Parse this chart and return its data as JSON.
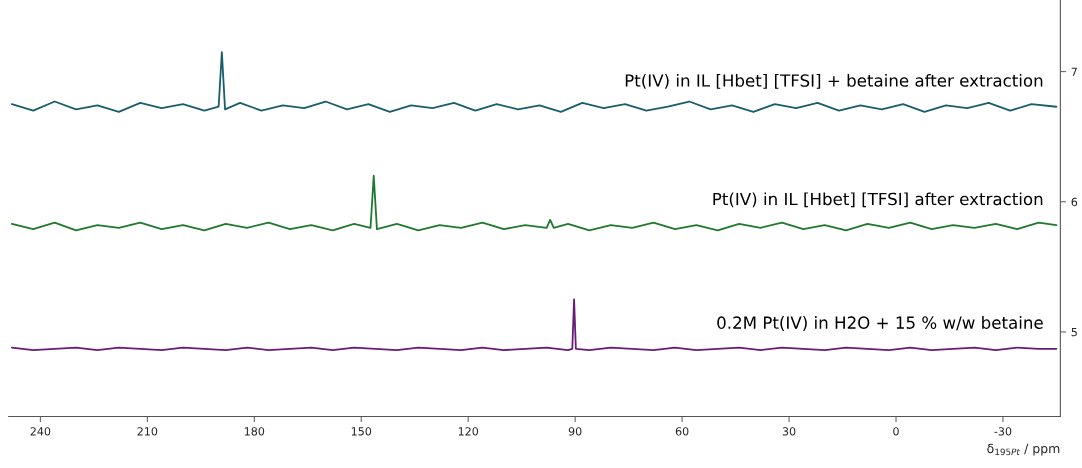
{
  "chart_data": {
    "type": "line",
    "xlabel": "δ$_{195Pt}$ / ppm",
    "xlim": [
      248.9,
      -46.1
    ],
    "xticks": [
      240,
      210,
      180,
      150,
      120,
      90,
      60,
      30,
      0,
      -30
    ],
    "ylim": [
      4.35,
      7.55
    ],
    "yticks": [
      5,
      6,
      7
    ],
    "grid": false,
    "legend": false,
    "marker": "none",
    "line_style": "solid",
    "series": [
      {
        "name": "Pt(IV) in IL [Hbet] [TFSI] + betaine after extraction",
        "color": "#1a5e6e",
        "x": [
          248,
          242,
          236,
          230,
          224,
          218,
          212,
          206,
          200,
          194,
          190,
          189.1,
          188.2,
          184,
          178,
          172,
          166,
          160,
          154,
          148,
          142,
          136,
          130,
          124,
          118,
          112,
          106,
          100,
          94,
          88,
          82,
          76,
          70,
          64,
          58,
          52,
          46,
          40,
          34,
          28,
          22,
          16,
          10,
          4,
          -2,
          -8,
          -14,
          -20,
          -26,
          -32,
          -38,
          -45
        ],
        "values": [
          6.75,
          6.7,
          6.77,
          6.71,
          6.74,
          6.69,
          6.76,
          6.72,
          6.75,
          6.7,
          6.73,
          7.15,
          6.71,
          6.76,
          6.7,
          6.74,
          6.72,
          6.77,
          6.71,
          6.75,
          6.69,
          6.74,
          6.72,
          6.76,
          6.7,
          6.75,
          6.71,
          6.74,
          6.69,
          6.76,
          6.72,
          6.75,
          6.7,
          6.73,
          6.77,
          6.71,
          6.74,
          6.69,
          6.75,
          6.72,
          6.76,
          6.7,
          6.74,
          6.71,
          6.75,
          6.69,
          6.74,
          6.72,
          6.76,
          6.7,
          6.75,
          6.73
        ]
      },
      {
        "name": "Pt(IV) in IL [Hbet] [TFSI] after extraction",
        "color": "#1f7a2e",
        "x": [
          248,
          242,
          236,
          230,
          224,
          218,
          212,
          206,
          200,
          194,
          188,
          182,
          176,
          170,
          164,
          158,
          152,
          147.4,
          146.5,
          145.6,
          140,
          134,
          128,
          122,
          116,
          110,
          104,
          98,
          97,
          96,
          92,
          86,
          80,
          74,
          68,
          62,
          56,
          50,
          44,
          38,
          32,
          26,
          20,
          14,
          8,
          2,
          -4,
          -10,
          -16,
          -22,
          -28,
          -34,
          -40,
          -45
        ],
        "values": [
          5.83,
          5.79,
          5.84,
          5.78,
          5.82,
          5.8,
          5.84,
          5.79,
          5.82,
          5.78,
          5.83,
          5.8,
          5.84,
          5.79,
          5.82,
          5.78,
          5.83,
          5.8,
          6.2,
          5.79,
          5.83,
          5.78,
          5.82,
          5.8,
          5.84,
          5.79,
          5.82,
          5.8,
          5.86,
          5.8,
          5.83,
          5.78,
          5.82,
          5.8,
          5.84,
          5.79,
          5.82,
          5.78,
          5.83,
          5.8,
          5.84,
          5.79,
          5.82,
          5.78,
          5.83,
          5.8,
          5.84,
          5.79,
          5.82,
          5.8,
          5.83,
          5.79,
          5.84,
          5.82
        ]
      },
      {
        "name": "0.2M Pt(IV) in H2O + 15 % w/w betaine",
        "color": "#6a1a78",
        "x": [
          248,
          242,
          236,
          230,
          224,
          218,
          212,
          206,
          200,
          194,
          188,
          182,
          176,
          170,
          164,
          158,
          152,
          146,
          140,
          134,
          128,
          122,
          116,
          110,
          104,
          98,
          92,
          90.8,
          90.3,
          89.8,
          86,
          80,
          74,
          68,
          62,
          56,
          50,
          44,
          38,
          32,
          26,
          20,
          14,
          8,
          2,
          -4,
          -10,
          -16,
          -22,
          -28,
          -34,
          -40,
          -45
        ],
        "values": [
          4.88,
          4.86,
          4.87,
          4.88,
          4.86,
          4.88,
          4.87,
          4.86,
          4.88,
          4.87,
          4.86,
          4.88,
          4.86,
          4.87,
          4.88,
          4.86,
          4.88,
          4.87,
          4.86,
          4.88,
          4.87,
          4.86,
          4.88,
          4.86,
          4.87,
          4.88,
          4.86,
          4.87,
          5.25,
          4.87,
          4.86,
          4.88,
          4.87,
          4.86,
          4.88,
          4.86,
          4.87,
          4.88,
          4.86,
          4.88,
          4.87,
          4.86,
          4.88,
          4.87,
          4.86,
          4.88,
          4.86,
          4.87,
          4.88,
          4.86,
          4.88,
          4.87,
          4.87
        ]
      }
    ]
  }
}
